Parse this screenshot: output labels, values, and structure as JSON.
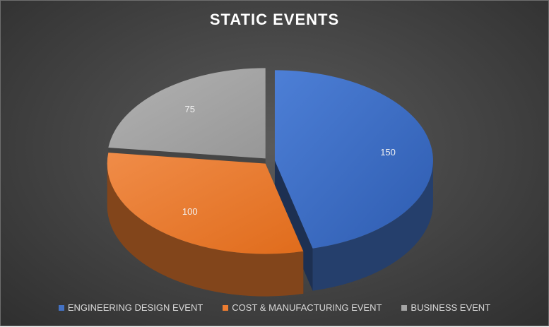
{
  "chart_data": {
    "type": "pie",
    "title": "STATIC EVENTS",
    "categories": [
      "ENGINEERING DESIGN EVENT",
      "COST & MANUFACTURING EVENT",
      "BUSINESS EVENT"
    ],
    "values": [
      150,
      100,
      75
    ],
    "data_labels": [
      "150",
      "100",
      "75"
    ],
    "colors": [
      "#4472C4",
      "#ED7D31",
      "#A5A5A5"
    ],
    "legend_position": "bottom",
    "style": "3d-exploded"
  }
}
